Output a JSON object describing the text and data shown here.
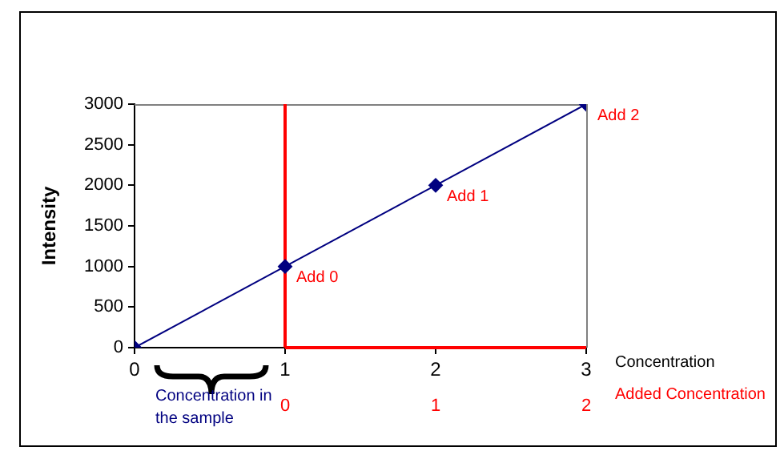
{
  "chart_data": {
    "type": "line",
    "ylabel": "Intensity",
    "xlabel": "Concentration",
    "x2label": "Added Concentration",
    "x": [
      0,
      1,
      2,
      3
    ],
    "series": [
      {
        "color": "#000080",
        "values": [
          0,
          1000,
          2000,
          3000
        ]
      }
    ],
    "xlim": [
      0,
      3
    ],
    "xticks": [
      0,
      1,
      2,
      3
    ],
    "ylim": [
      0,
      3000
    ],
    "yticks": [
      0,
      500,
      1000,
      1500,
      2000,
      2500,
      3000
    ],
    "x2lim": [
      -1,
      2
    ],
    "x2ticks": [
      0,
      1,
      2
    ],
    "ref_lines": [
      {
        "axis": "x",
        "value": 1,
        "color": "#ff0000"
      }
    ],
    "annotations": [
      {
        "text": "Add 0",
        "x": 1,
        "y": 1000
      },
      {
        "text": "Add 1",
        "x": 2,
        "y": 2000
      },
      {
        "text": "Add 2",
        "x": 3,
        "y": 3000
      },
      "Concentration in the sample"
    ],
    "grid": false,
    "legend": false,
    "marker": "diamond",
    "line_style": "solid"
  }
}
